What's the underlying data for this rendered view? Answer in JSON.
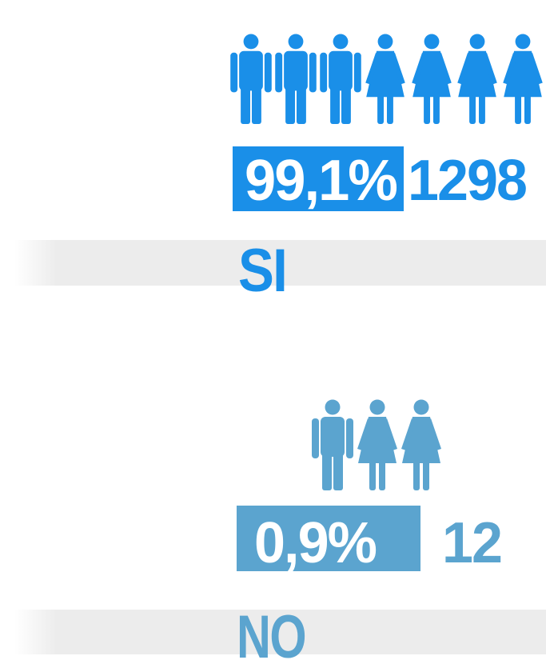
{
  "items": [
    {
      "percent": "99,1%",
      "count": "1298",
      "answer": "SI"
    },
    {
      "percent": "0,9%",
      "count": "12",
      "answer": "NO"
    }
  ]
}
